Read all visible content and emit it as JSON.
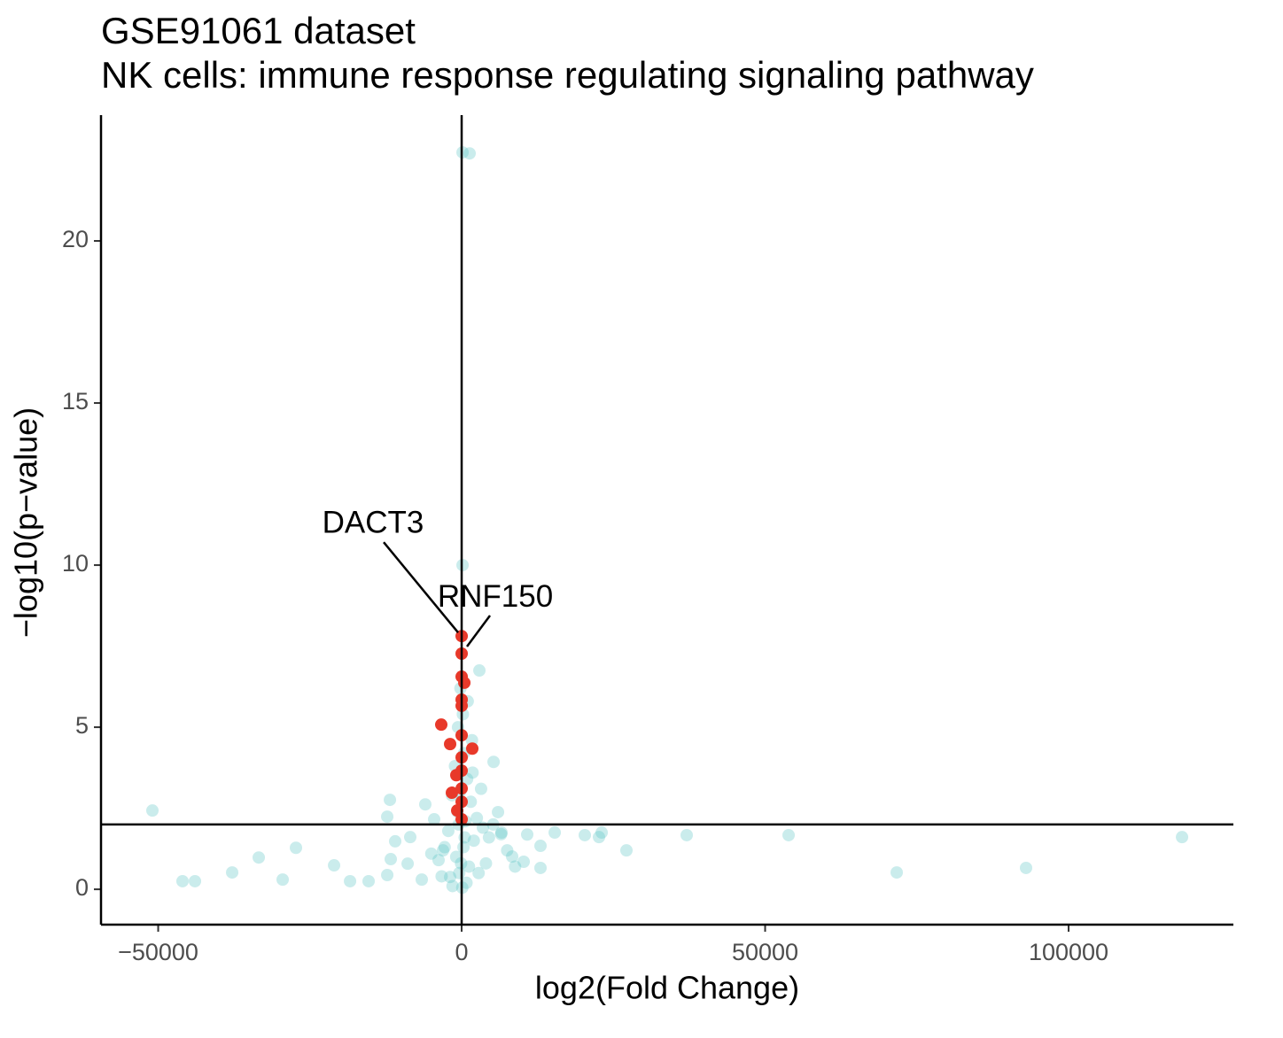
{
  "chart_data": {
    "type": "scatter",
    "title": "GSE91061 dataset",
    "subtitle": "NK cells: immune response regulating signaling pathway",
    "xlabel": "log2(Fold Change)",
    "ylabel": "−log10(p−value)",
    "xlim": [
      -59420,
      127150
    ],
    "ylim": [
      -1.09,
      23.88
    ],
    "xticks": [
      {
        "value": -50000,
        "label": "−50000"
      },
      0,
      50000,
      100000
    ],
    "yticks": [
      0,
      5,
      10,
      15,
      20
    ],
    "vline": 0,
    "hline": 2,
    "series": [
      {
        "color": "#4fbfbf",
        "opacity": 0.3,
        "x": [
          -50950,
          -45990,
          -43940,
          -37810,
          -33430,
          -29490,
          -27300,
          -21020,
          -18390,
          -15330,
          -12260,
          -11820,
          -12260,
          -10950,
          -11680,
          -8470,
          -8900,
          -6570,
          -5990,
          -4530,
          -3070,
          -1900,
          150,
          1310,
          150,
          2920,
          5260,
          5990,
          6570,
          8320,
          10220,
          12990,
          10800,
          12990,
          15330,
          20290,
          22630,
          23070,
          27150,
          37080,
          53870,
          71680,
          92990,
          118690,
          -1500,
          800,
          -400,
          1200,
          -900,
          300,
          2000,
          -2200,
          600,
          -700,
          1500,
          -300,
          900,
          -1100,
          400,
          1700,
          -600,
          200,
          1000,
          -200,
          2500,
          3500,
          4500,
          -2800,
          -3800,
          2800,
          4000,
          -3300,
          3200,
          1800,
          -1600,
          5200,
          6500,
          -5000,
          7500,
          8800,
          100,
          -100,
          500,
          -500
        ],
        "values": [
          2.43,
          0.25,
          0.25,
          0.52,
          0.98,
          0.3,
          1.28,
          0.74,
          0.25,
          0.25,
          0.44,
          2.76,
          2.24,
          1.48,
          0.93,
          1.61,
          0.79,
          0.3,
          2.62,
          2.16,
          1.2,
          0.38,
          22.73,
          22.7,
          10.0,
          6.75,
          3.93,
          2.38,
          1.75,
          1.01,
          0.85,
          0.66,
          1.69,
          1.34,
          1.75,
          1.67,
          1.61,
          1.75,
          1.2,
          1.67,
          1.67,
          0.52,
          0.66,
          1.61,
          0.1,
          0.2,
          0.5,
          0.7,
          1.0,
          1.3,
          1.5,
          1.8,
          2.1,
          2.4,
          2.7,
          3.0,
          3.4,
          3.8,
          4.2,
          4.6,
          5.0,
          5.4,
          5.8,
          6.2,
          2.2,
          1.9,
          1.6,
          1.3,
          0.9,
          0.5,
          0.8,
          0.4,
          3.1,
          3.6,
          2.9,
          2.0,
          1.7,
          1.1,
          1.2,
          0.7,
          0.05,
          0.8,
          1.6,
          2.0
        ]
      },
      {
        "color": "#e8392a",
        "opacity": 1,
        "x": [
          0,
          0,
          0,
          440,
          0,
          0,
          -3360,
          0,
          -1900,
          1750,
          0,
          0,
          -880,
          0,
          -1610,
          0,
          -730,
          0
        ],
        "values": [
          7.81,
          7.27,
          6.56,
          6.37,
          5.85,
          5.66,
          5.08,
          4.75,
          4.48,
          4.34,
          4.07,
          3.66,
          3.52,
          3.11,
          2.98,
          2.7,
          2.43,
          2.16
        ]
      }
    ],
    "annotations": [
      {
        "text": "DACT3",
        "x": 0,
        "y": 7.81
      },
      {
        "text": "RNF150",
        "x": 0,
        "y": 7.27
      }
    ]
  }
}
